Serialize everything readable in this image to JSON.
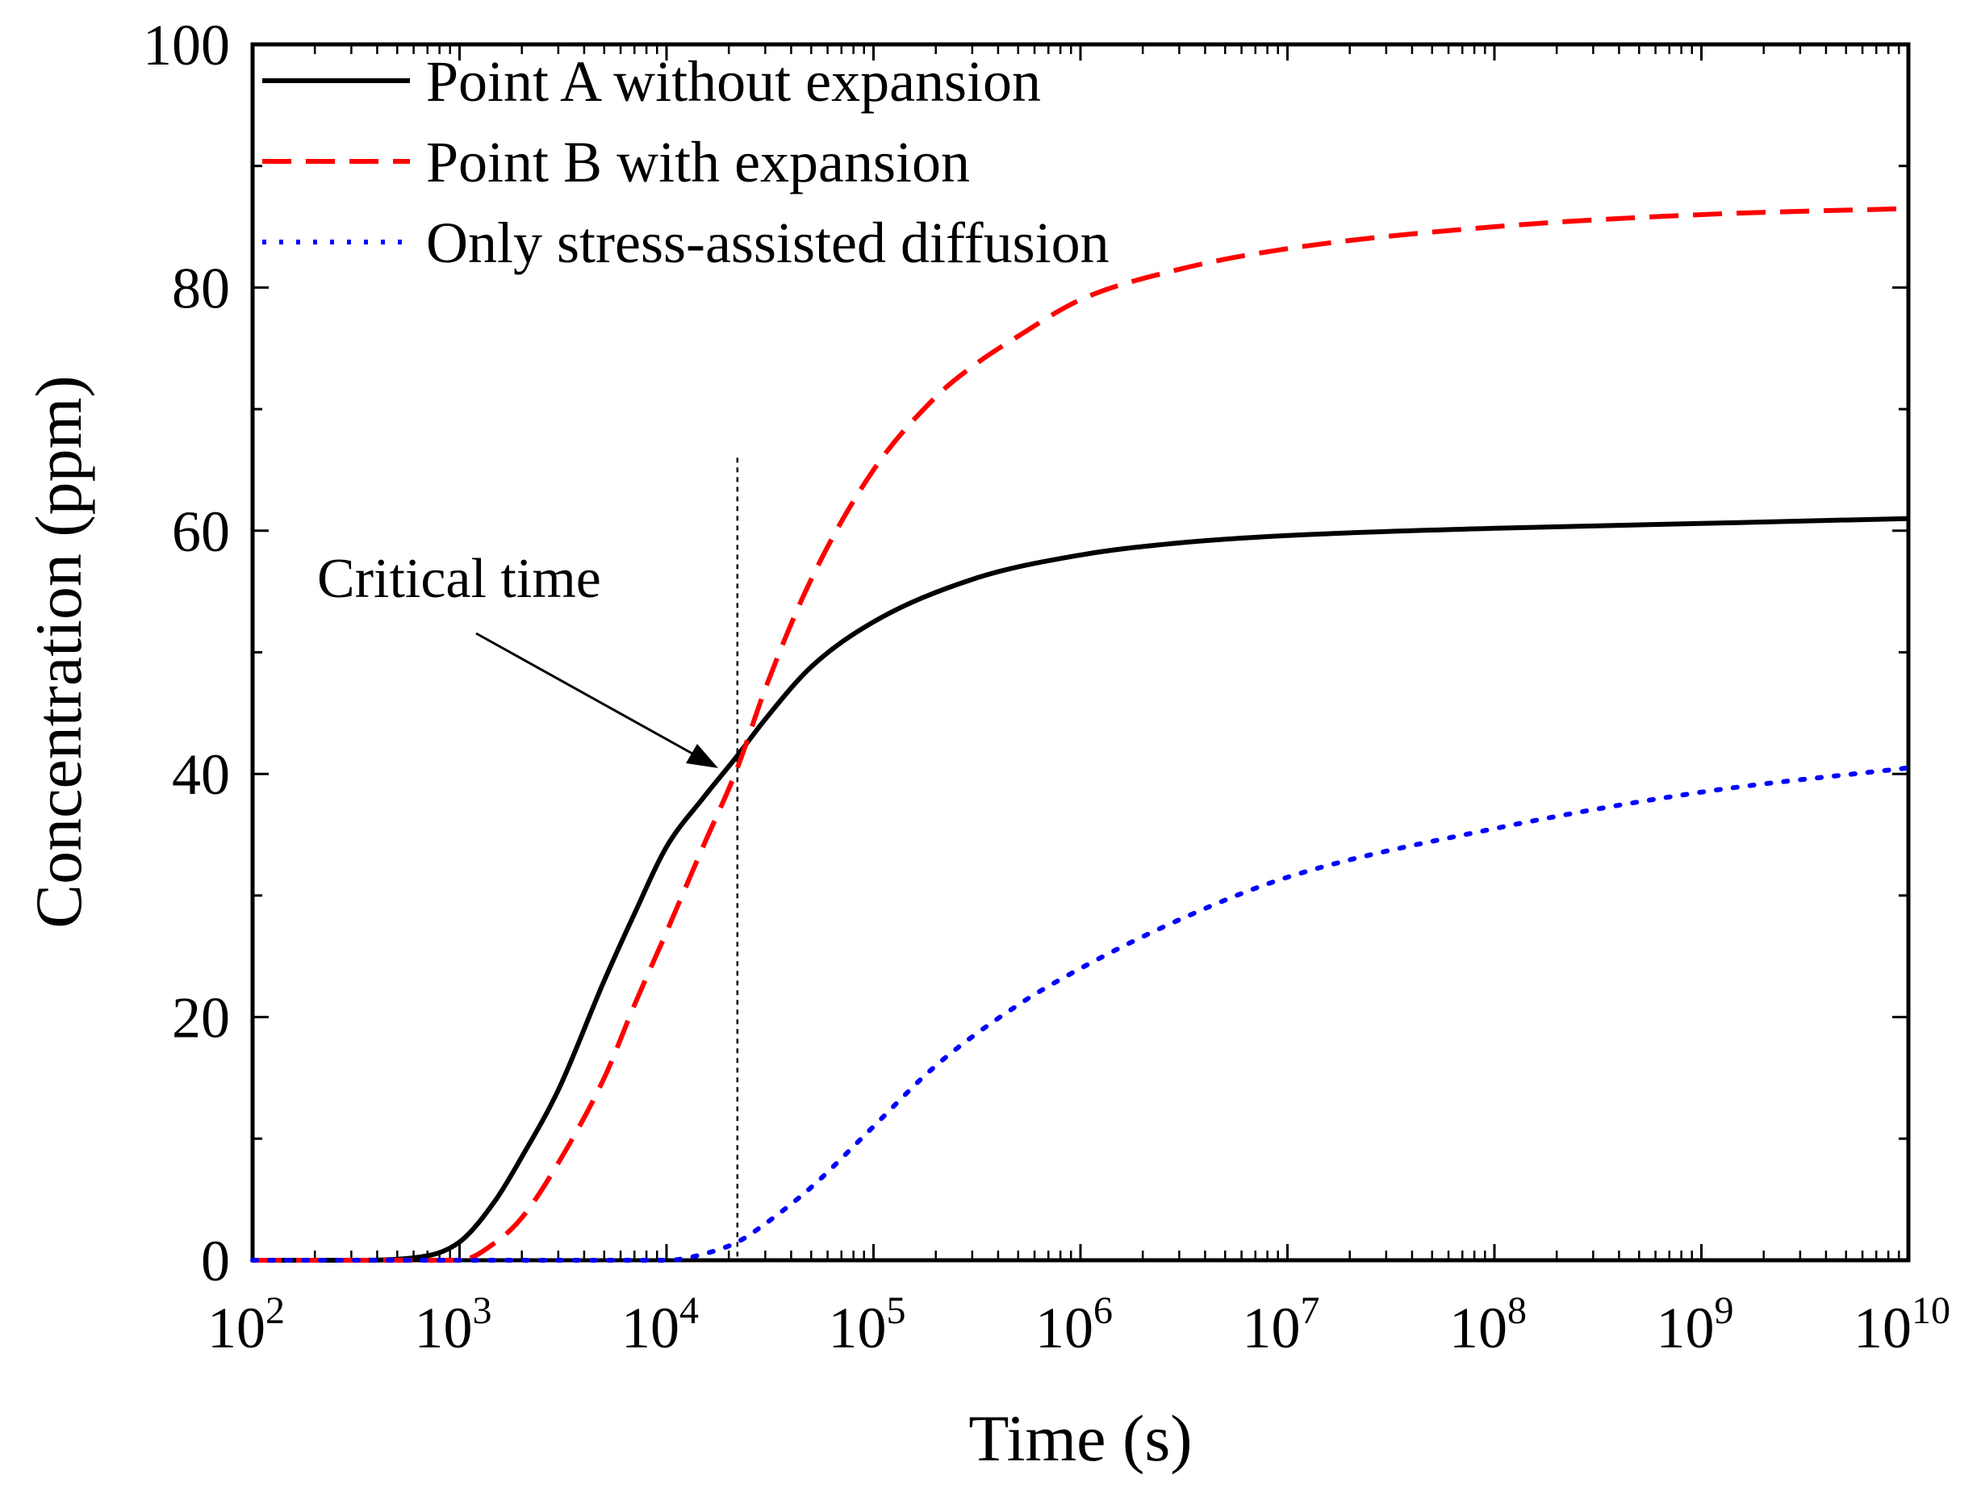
{
  "chart_data": {
    "type": "line",
    "title": "",
    "xlabel": "Time (s)",
    "ylabel": "Concentration (ppm)",
    "xscale": "log",
    "xlim_exp": [
      2,
      10
    ],
    "ylim": [
      0,
      100
    ],
    "yticks": [
      "0",
      "20",
      "40",
      "60",
      "80",
      "100"
    ],
    "xticks": [
      {
        "base": "10",
        "exp": "2"
      },
      {
        "base": "10",
        "exp": "3"
      },
      {
        "base": "10",
        "exp": "4"
      },
      {
        "base": "10",
        "exp": "5"
      },
      {
        "base": "10",
        "exp": "6"
      },
      {
        "base": "10",
        "exp": "7"
      },
      {
        "base": "10",
        "exp": "8"
      },
      {
        "base": "10",
        "exp": "9"
      },
      {
        "base": "10",
        "exp": "10"
      }
    ],
    "legend_position": "top-left",
    "series": [
      {
        "name": "Point A without expansion",
        "color": "#000000",
        "style": "solid",
        "x": [
          100,
          300,
          600,
          1000,
          1500,
          2000,
          3000,
          5000,
          7000,
          10000,
          15000,
          22000,
          30000,
          50000,
          100000,
          300000,
          1000000,
          3000000,
          10000000,
          100000000,
          1000000000,
          10000000000
        ],
        "y": [
          0,
          0,
          0.2,
          1.5,
          5,
          8.5,
          14,
          23,
          28.5,
          34,
          38,
          41.5,
          44.5,
          48.8,
          52.5,
          56,
          58,
          59,
          59.6,
          60.2,
          60.6,
          61
        ]
      },
      {
        "name": "Point B with expansion",
        "color": "#ff0000",
        "style": "dashed",
        "x": [
          100,
          500,
          1000,
          1500,
          2000,
          3000,
          5000,
          7000,
          10000,
          15000,
          22000,
          30000,
          50000,
          100000,
          200000,
          300000,
          500000,
          1000000,
          3000000,
          10000000,
          100000000,
          1000000000,
          10000000000
        ],
        "y": [
          0,
          0,
          0,
          1.5,
          3.5,
          8,
          15,
          21,
          27,
          34,
          40.5,
          47,
          56,
          65,
          71,
          73.5,
          76,
          79,
          81.5,
          83.2,
          85,
          86,
          86.5
        ]
      },
      {
        "name": "Only stress-assisted diffusion",
        "color": "#0000ff",
        "style": "dotted",
        "x": [
          100,
          10000,
          15000,
          22000,
          30000,
          50000,
          100000,
          200000,
          500000,
          1000000,
          3000000,
          10000000,
          100000000,
          1000000000,
          10000000000
        ],
        "y": [
          0,
          0,
          0.5,
          1.5,
          3,
          6,
          11,
          16,
          21,
          24,
          28,
          31.5,
          35.5,
          38.5,
          40.5
        ]
      }
    ],
    "annotations": [
      {
        "text": "Critical time",
        "x": 22000,
        "y": 40
      }
    ]
  }
}
